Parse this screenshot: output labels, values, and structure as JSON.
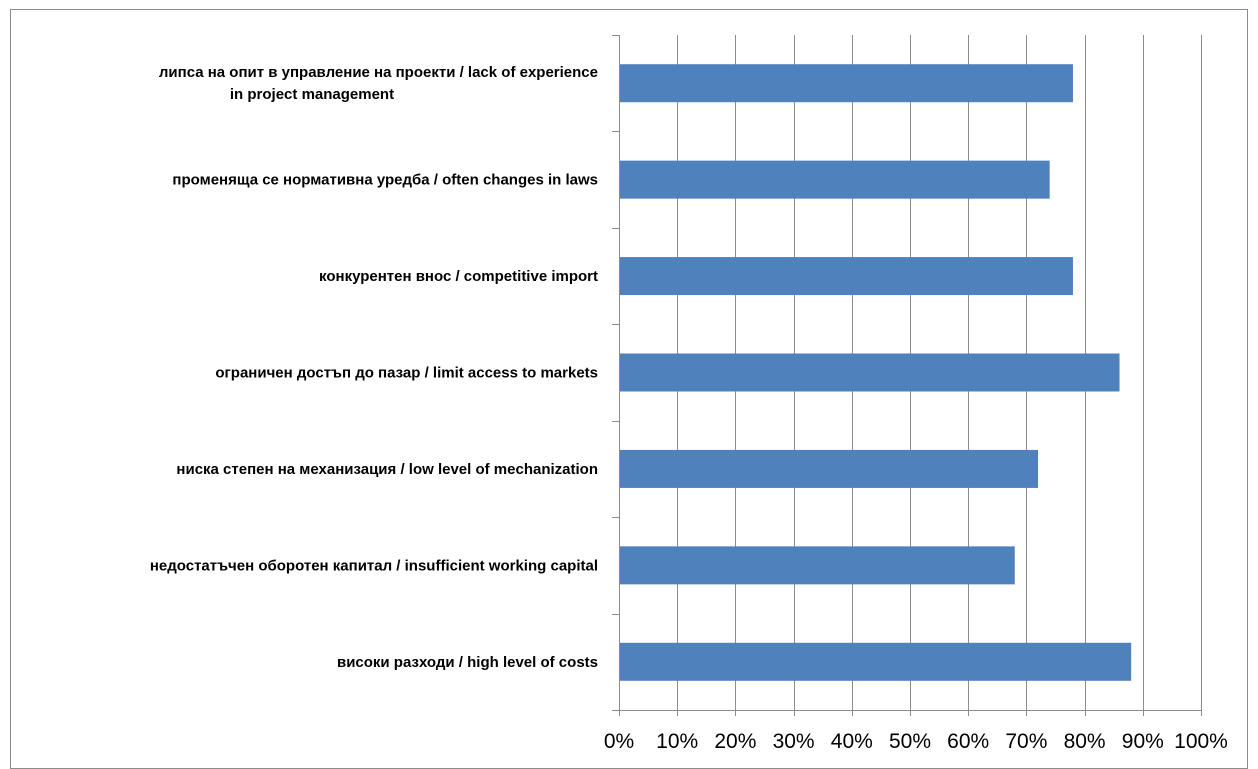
{
  "chart_data": {
    "type": "bar",
    "orientation": "horizontal",
    "categories": [
      [
        "липса на опит в управление на проекти / lack of experience",
        "in project management"
      ],
      [
        "променяща се нормативна уредба / often changes in laws"
      ],
      [
        "конкурентен внос / competitive import"
      ],
      [
        "ограничен достъп до пазар / limit access to markets"
      ],
      [
        "ниска степен на механизация / low level of mechanization"
      ],
      [
        "недостатъчен оборотен капитал / insufficient working capital"
      ],
      [
        "високи разходи / high level of costs"
      ]
    ],
    "values": [
      0.78,
      0.74,
      0.78,
      0.86,
      0.72,
      0.68,
      0.88
    ],
    "xlim": [
      0,
      1
    ],
    "xticks": [
      0,
      0.1,
      0.2,
      0.3,
      0.4,
      0.5,
      0.6,
      0.7,
      0.8,
      0.9,
      1.0
    ],
    "xtick_labels": [
      "0%",
      "10%",
      "20%",
      "30%",
      "40%",
      "50%",
      "60%",
      "70%",
      "80%",
      "90%",
      "100%"
    ],
    "grid": true,
    "bar_color": "#4F81BD",
    "grid_color": "#8c8c8c"
  }
}
